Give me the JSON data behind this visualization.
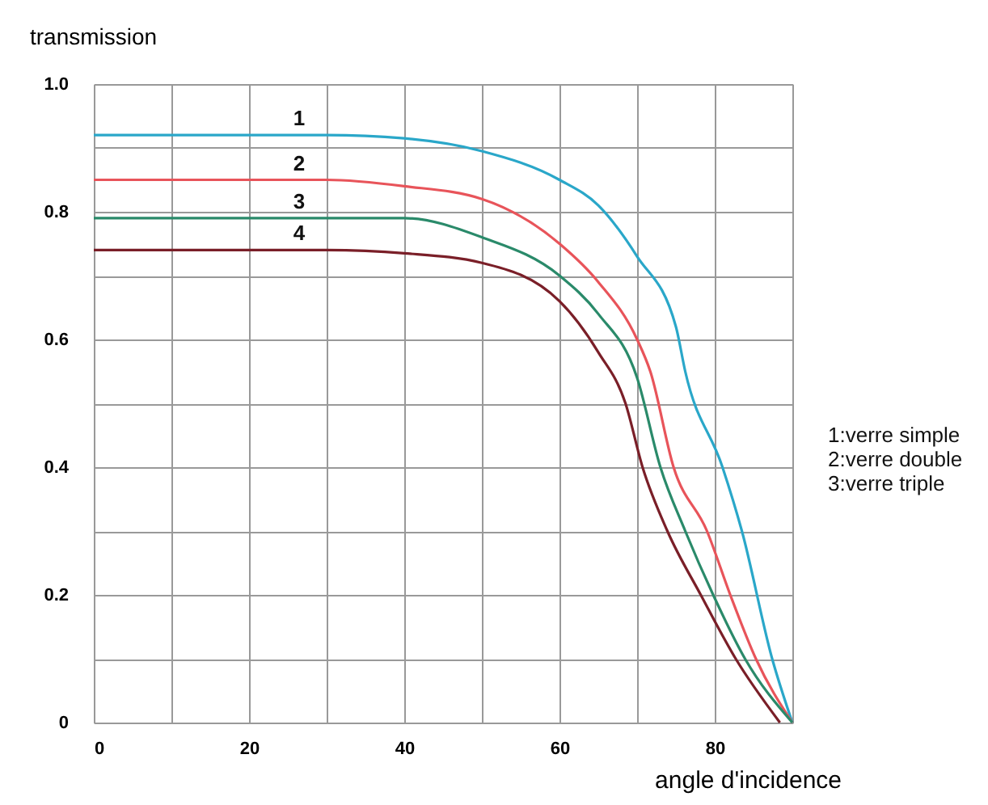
{
  "chart_data": {
    "type": "line",
    "xlabel": "angle d'incidence",
    "ylabel": "transmission",
    "xlim": [
      0,
      90
    ],
    "ylim": [
      0,
      1
    ],
    "xticks": [
      0,
      {
        "value": 10,
        "label": null
      },
      20,
      {
        "value": 30,
        "label": null
      },
      40,
      {
        "value": 50,
        "label": null
      },
      60,
      {
        "value": 70,
        "label": null
      },
      80,
      {
        "value": 90,
        "label": null
      }
    ],
    "yticks": [
      0,
      {
        "value": 0.1,
        "label": null
      },
      0.2,
      {
        "value": 0.3,
        "label": null
      },
      0.4,
      {
        "value": 0.5,
        "label": null
      },
      0.6,
      {
        "value": 0.7,
        "label": null
      },
      0.8,
      {
        "value": 0.9,
        "label": null
      },
      {
        "value": 1,
        "label": "1.0"
      }
    ],
    "grid": true,
    "legend": false,
    "marker": "none",
    "line_style": "solid",
    "series": [
      {
        "name": "1",
        "color": "#2aa7c9",
        "x": [
          0,
          10,
          20,
          30,
          40,
          50,
          60,
          65,
          70,
          75,
          76.2,
          81,
          83.5,
          87.4,
          90
        ],
        "values": [
          0.92,
          0.92,
          0.92,
          0.92,
          0.915,
          0.895,
          0.85,
          0.81,
          0.73,
          0.62,
          0.55,
          0.4,
          0.3,
          0.1,
          0
        ]
      },
      {
        "name": "2",
        "color": "#e8545a",
        "x": [
          0,
          10,
          20,
          30,
          40,
          50,
          60,
          65,
          70,
          71.7,
          74.7,
          79,
          82,
          85.3,
          90
        ],
        "values": [
          0.85,
          0.85,
          0.85,
          0.85,
          0.84,
          0.82,
          0.75,
          0.69,
          0.6,
          0.55,
          0.4,
          0.3,
          0.2,
          0.1,
          0
        ]
      },
      {
        "name": "3",
        "color": "#2a8a6a",
        "x": [
          0,
          10,
          20,
          30,
          40,
          50,
          60,
          65,
          70,
          73,
          76.2,
          79.8,
          83.9,
          90
        ],
        "values": [
          0.79,
          0.79,
          0.79,
          0.79,
          0.79,
          0.76,
          0.7,
          0.64,
          0.54,
          0.4,
          0.3,
          0.2,
          0.1,
          0
        ]
      },
      {
        "name": "4",
        "color": "#7a1f28",
        "x": [
          0,
          10,
          20,
          30,
          40,
          50,
          60,
          65,
          68.5,
          70.7,
          73.9,
          78.2,
          82.7,
          88.4
        ],
        "values": [
          0.74,
          0.74,
          0.74,
          0.74,
          0.735,
          0.72,
          0.66,
          0.58,
          0.5,
          0.4,
          0.3,
          0.2,
          0.1,
          0
        ]
      }
    ],
    "annotations": [
      "1:verre simple",
      "2:verre double",
      "3:verre triple"
    ]
  }
}
